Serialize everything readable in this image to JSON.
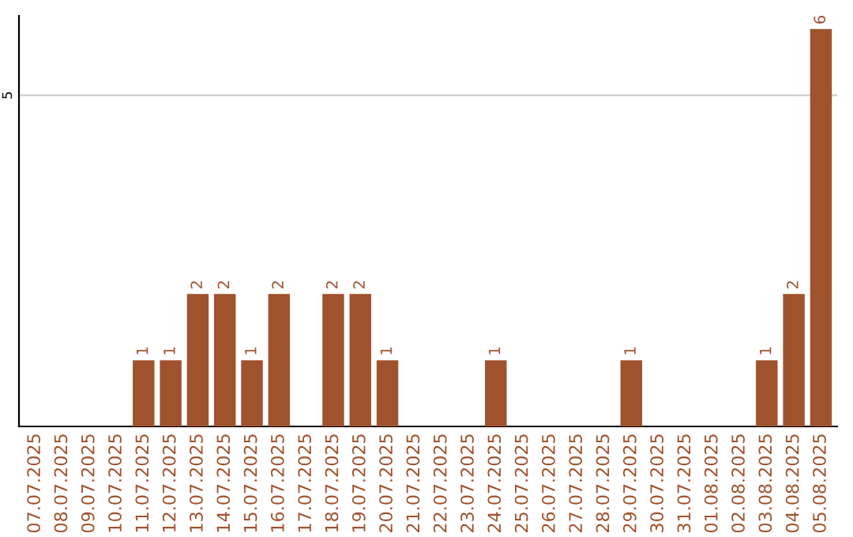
{
  "chart_data": {
    "type": "bar",
    "categories": [
      "07.07.2025",
      "08.07.2025",
      "09.07.2025",
      "10.07.2025",
      "11.07.2025",
      "12.07.2025",
      "13.07.2025",
      "14.07.2025",
      "15.07.2025",
      "16.07.2025",
      "17.07.2025",
      "18.07.2025",
      "19.07.2025",
      "20.07.2025",
      "21.07.2025",
      "22.07.2025",
      "23.07.2025",
      "24.07.2025",
      "25.07.2025",
      "26.07.2025",
      "27.07.2025",
      "28.07.2025",
      "29.07.2025",
      "30.07.2025",
      "31.07.2025",
      "01.08.2025",
      "02.08.2025",
      "03.08.2025",
      "04.08.2025",
      "05.08.2025"
    ],
    "values": [
      0,
      0,
      0,
      0,
      1,
      1,
      2,
      2,
      1,
      2,
      0,
      2,
      2,
      1,
      0,
      0,
      0,
      1,
      0,
      0,
      0,
      0,
      1,
      0,
      0,
      0,
      0,
      1,
      2,
      6
    ],
    "value_labels": [
      null,
      null,
      null,
      null,
      "1",
      "1",
      "2",
      "2",
      "1",
      "2",
      null,
      "2",
      "2",
      "1",
      null,
      null,
      null,
      "1",
      null,
      null,
      null,
      null,
      "1",
      null,
      null,
      null,
      null,
      "1",
      "2",
      "6"
    ],
    "color": "#a0522d",
    "ylim": [
      0,
      6.2
    ],
    "yticks": [
      5
    ],
    "grid": "y"
  }
}
